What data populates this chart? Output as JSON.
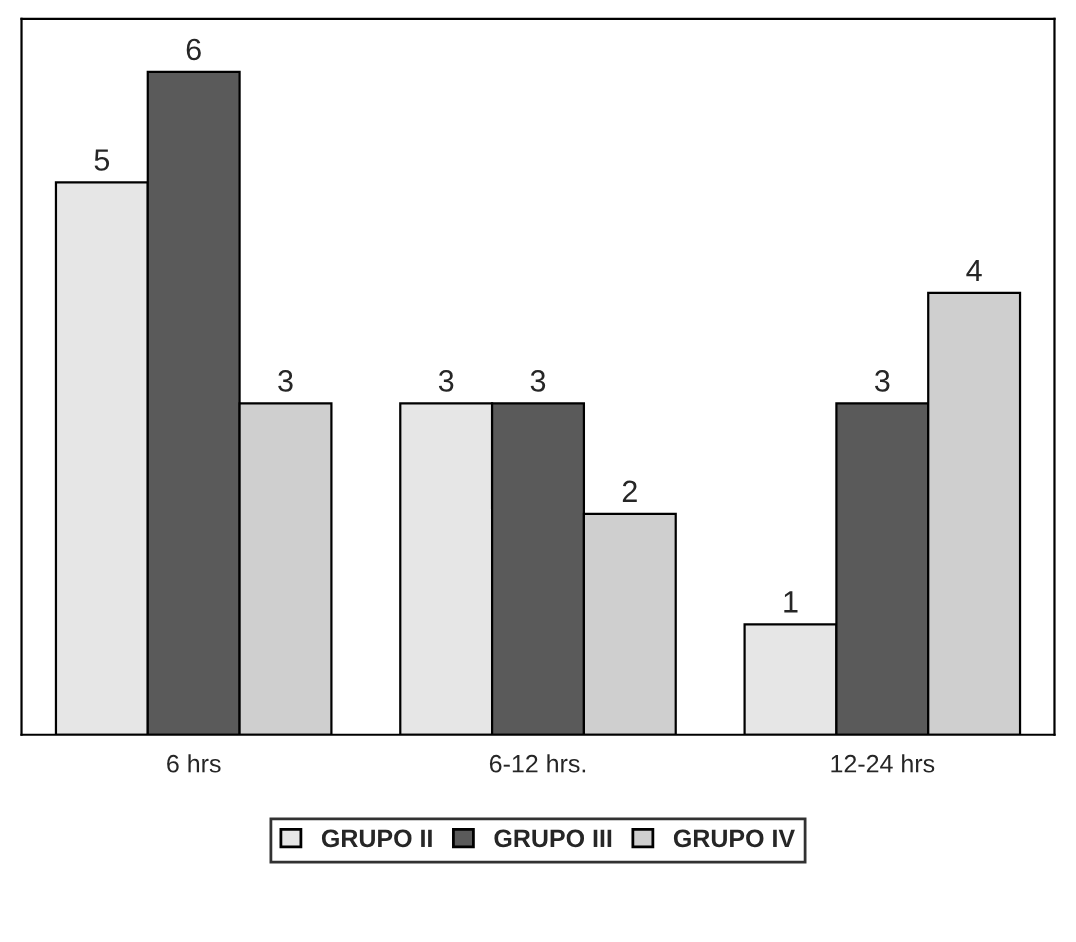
{
  "chart_data": {
    "type": "bar",
    "categories": [
      "6 hrs",
      "6-12 hrs.",
      "12-24 hrs"
    ],
    "series": [
      {
        "name": "GRUPO II",
        "color": "#e6e6e6",
        "values": [
          5,
          3,
          1
        ]
      },
      {
        "name": "GRUPO III",
        "color": "#5a5a5a",
        "values": [
          6,
          3,
          3
        ]
      },
      {
        "name": "GRUPO IV",
        "color": "#cfcfcf",
        "values": [
          3,
          2,
          4
        ]
      }
    ],
    "data_labels": true,
    "legend": "bottom",
    "grid": false,
    "tick_labels": "x"
  }
}
